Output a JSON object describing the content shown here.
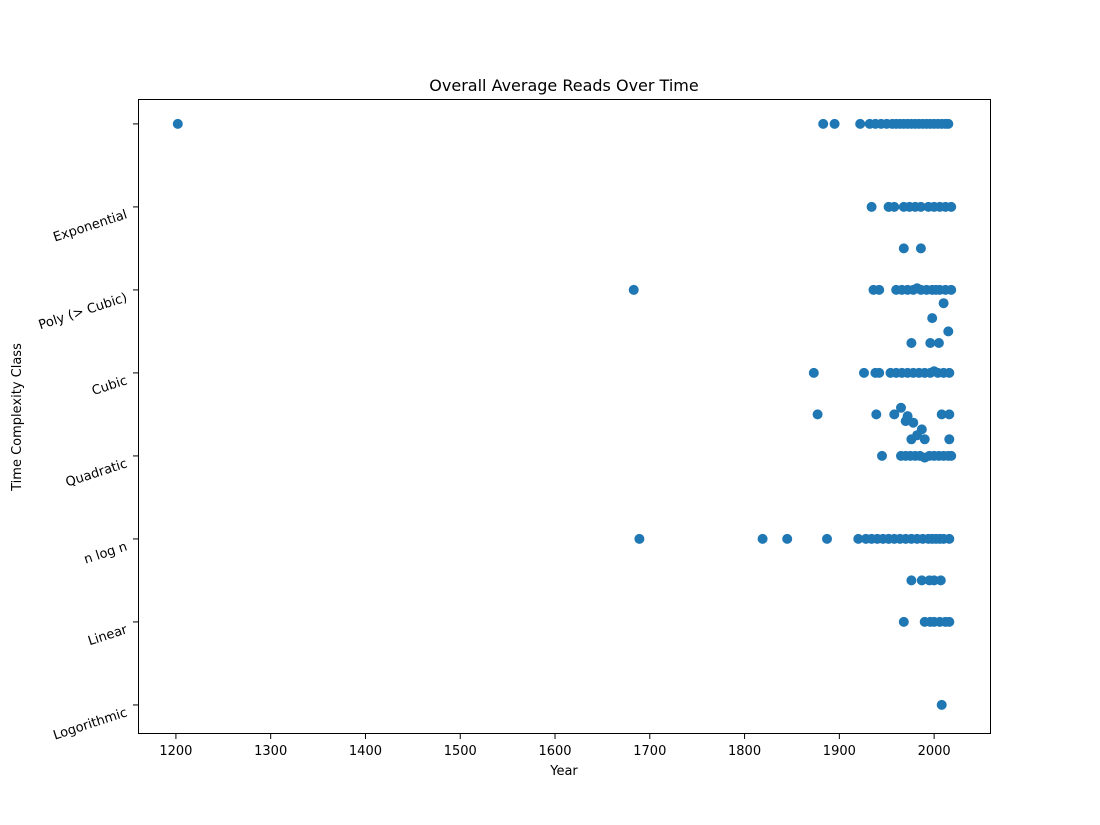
{
  "chart_data": {
    "type": "scatter",
    "title": "Overall Average Reads Over Time",
    "xlabel": "Year",
    "ylabel": "Time Complexity Class",
    "xlim": [
      1160,
      2060
    ],
    "ylim": [
      -0.35,
      7.3
    ],
    "xticks": [
      1200,
      1300,
      1400,
      1500,
      1600,
      1700,
      1800,
      1900,
      2000
    ],
    "yticks": [
      {
        "value": 0,
        "label": "Logorithmic"
      },
      {
        "value": 1,
        "label": "Linear"
      },
      {
        "value": 2,
        "label": "n log n"
      },
      {
        "value": 3,
        "label": "Quadratic"
      },
      {
        "value": 4,
        "label": "Cubic"
      },
      {
        "value": 5,
        "label": "Poly (> Cubic)"
      },
      {
        "value": 6,
        "label": "Exponential"
      },
      {
        "value": 7,
        "label": ""
      }
    ],
    "grid": false,
    "marker_color": "#1f77b4",
    "series": [
      {
        "points": [
          [
            1202,
            7
          ],
          [
            1883,
            7
          ],
          [
            1895,
            7
          ],
          [
            1922,
            7
          ],
          [
            1932,
            7
          ],
          [
            1938,
            7
          ],
          [
            1944,
            7
          ],
          [
            1950,
            7
          ],
          [
            1956,
            7
          ],
          [
            1960,
            7
          ],
          [
            1964,
            7
          ],
          [
            1968,
            7
          ],
          [
            1972,
            7
          ],
          [
            1976,
            7
          ],
          [
            1980,
            7
          ],
          [
            1984,
            7
          ],
          [
            1988,
            7
          ],
          [
            1992,
            7
          ],
          [
            1996,
            7
          ],
          [
            2000,
            7
          ],
          [
            2004,
            7
          ],
          [
            2008,
            7
          ],
          [
            2012,
            7
          ],
          [
            2015,
            7
          ],
          [
            1934,
            6
          ],
          [
            1952,
            6
          ],
          [
            1958,
            6
          ],
          [
            1968,
            6
          ],
          [
            1974,
            6
          ],
          [
            1980,
            6
          ],
          [
            1986,
            6
          ],
          [
            1994,
            6
          ],
          [
            2000,
            6
          ],
          [
            2006,
            6
          ],
          [
            2012,
            6
          ],
          [
            2018,
            6
          ],
          [
            1968,
            5.5
          ],
          [
            1986,
            5.5
          ],
          [
            1683,
            5
          ],
          [
            1936,
            5
          ],
          [
            1942,
            5
          ],
          [
            1960,
            5
          ],
          [
            1966,
            5
          ],
          [
            1972,
            5
          ],
          [
            1978,
            5
          ],
          [
            1982,
            5.02
          ],
          [
            1986,
            5
          ],
          [
            1992,
            5
          ],
          [
            1998,
            5
          ],
          [
            2002,
            5
          ],
          [
            2006,
            5
          ],
          [
            2012,
            5
          ],
          [
            2018,
            5
          ],
          [
            2010,
            4.84
          ],
          [
            1998,
            4.66
          ],
          [
            2015,
            4.5
          ],
          [
            1976,
            4.36
          ],
          [
            1996,
            4.36
          ],
          [
            2005,
            4.36
          ],
          [
            1873,
            4
          ],
          [
            1926,
            4
          ],
          [
            1938,
            4
          ],
          [
            1942,
            4
          ],
          [
            1954,
            4
          ],
          [
            1960,
            4
          ],
          [
            1966,
            4
          ],
          [
            1972,
            4
          ],
          [
            1978,
            4
          ],
          [
            1984,
            4
          ],
          [
            1990,
            4
          ],
          [
            1996,
            4
          ],
          [
            2000,
            4.02
          ],
          [
            2004,
            4
          ],
          [
            2010,
            4
          ],
          [
            2016,
            4
          ],
          [
            1877,
            3.5
          ],
          [
            1939,
            3.5
          ],
          [
            1958,
            3.5
          ],
          [
            1965,
            3.58
          ],
          [
            1972,
            3.48
          ],
          [
            1970,
            3.42
          ],
          [
            1978,
            3.4
          ],
          [
            1987,
            3.32
          ],
          [
            1982,
            3.25
          ],
          [
            1976,
            3.2
          ],
          [
            1990,
            3.2
          ],
          [
            2008,
            3.5
          ],
          [
            2016,
            3.5
          ],
          [
            2016,
            3.2
          ],
          [
            1945,
            3
          ],
          [
            1965,
            3
          ],
          [
            1970,
            3
          ],
          [
            1975,
            3
          ],
          [
            1980,
            3
          ],
          [
            1985,
            3
          ],
          [
            1990,
            2.98
          ],
          [
            1995,
            3
          ],
          [
            2000,
            3
          ],
          [
            2005,
            3
          ],
          [
            2010,
            3
          ],
          [
            2015,
            3
          ],
          [
            2018,
            3
          ],
          [
            1689,
            2
          ],
          [
            1819,
            2
          ],
          [
            1845,
            2
          ],
          [
            1887,
            2
          ],
          [
            1920,
            2
          ],
          [
            1928,
            2
          ],
          [
            1934,
            2
          ],
          [
            1940,
            2
          ],
          [
            1946,
            2
          ],
          [
            1952,
            2
          ],
          [
            1958,
            2
          ],
          [
            1964,
            2
          ],
          [
            1970,
            2
          ],
          [
            1976,
            2
          ],
          [
            1982,
            2
          ],
          [
            1988,
            2
          ],
          [
            1994,
            2
          ],
          [
            1998,
            2
          ],
          [
            2002,
            2
          ],
          [
            2006,
            2
          ],
          [
            2010,
            2
          ],
          [
            2016,
            2
          ],
          [
            1976,
            1.5
          ],
          [
            1987,
            1.5
          ],
          [
            1995,
            1.5
          ],
          [
            2000,
            1.5
          ],
          [
            2007,
            1.5
          ],
          [
            1968,
            1
          ],
          [
            1990,
            1
          ],
          [
            1996,
            1
          ],
          [
            2000,
            1
          ],
          [
            2006,
            1
          ],
          [
            2012,
            1
          ],
          [
            2016,
            1
          ],
          [
            2008,
            0
          ]
        ]
      }
    ]
  }
}
